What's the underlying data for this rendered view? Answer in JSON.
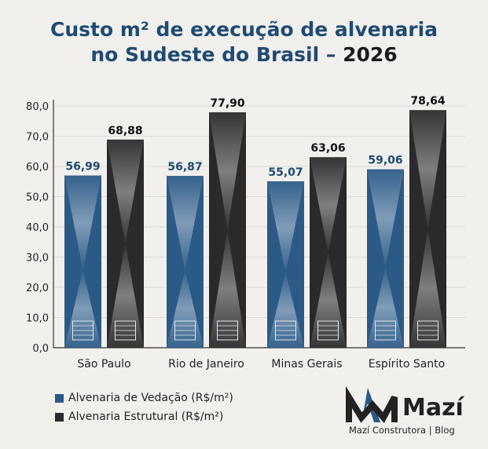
{
  "title_line1": "Custo m² de execução de alvenaria",
  "title_line2": "no Sudeste do Brasil – ",
  "title_year": "2026",
  "chart_data": {
    "type": "bar",
    "categories": [
      "São Paulo",
      "Rio de Janeiro",
      "Minas Gerais",
      "Espírito Santo"
    ],
    "series": [
      {
        "name": "Alvenaria de Vedação (R$/m²)",
        "values": [
          56.99,
          56.87,
          55.07,
          59.06
        ],
        "labels": [
          "56,99",
          "56,87",
          "55,07",
          "59,06"
        ],
        "color": "#2b5a87",
        "label_color": "#1f4a73"
      },
      {
        "name": "Alvenaria Estrutural (R$/m²)",
        "values": [
          68.88,
          77.9,
          63.06,
          78.64
        ],
        "labels": [
          "68,88",
          "77,90",
          "63,06",
          "78,64"
        ],
        "color": "#2a292b",
        "label_color": "#111111"
      }
    ],
    "yticks": [
      "0,0",
      "10,0",
      "20,0",
      "30,0",
      "40,0",
      "50,0",
      "60,0",
      "70,0",
      "80,0"
    ],
    "ylim": [
      0,
      80
    ],
    "grid": true,
    "legend": "bottom-left",
    "icons": [
      "brick-wall-icon",
      "brick-block-icon"
    ]
  },
  "logo": {
    "name": "Mazí",
    "subtitle": "Mazí Construtora | Blog",
    "colors": [
      "#2b5a87",
      "#222222"
    ]
  }
}
